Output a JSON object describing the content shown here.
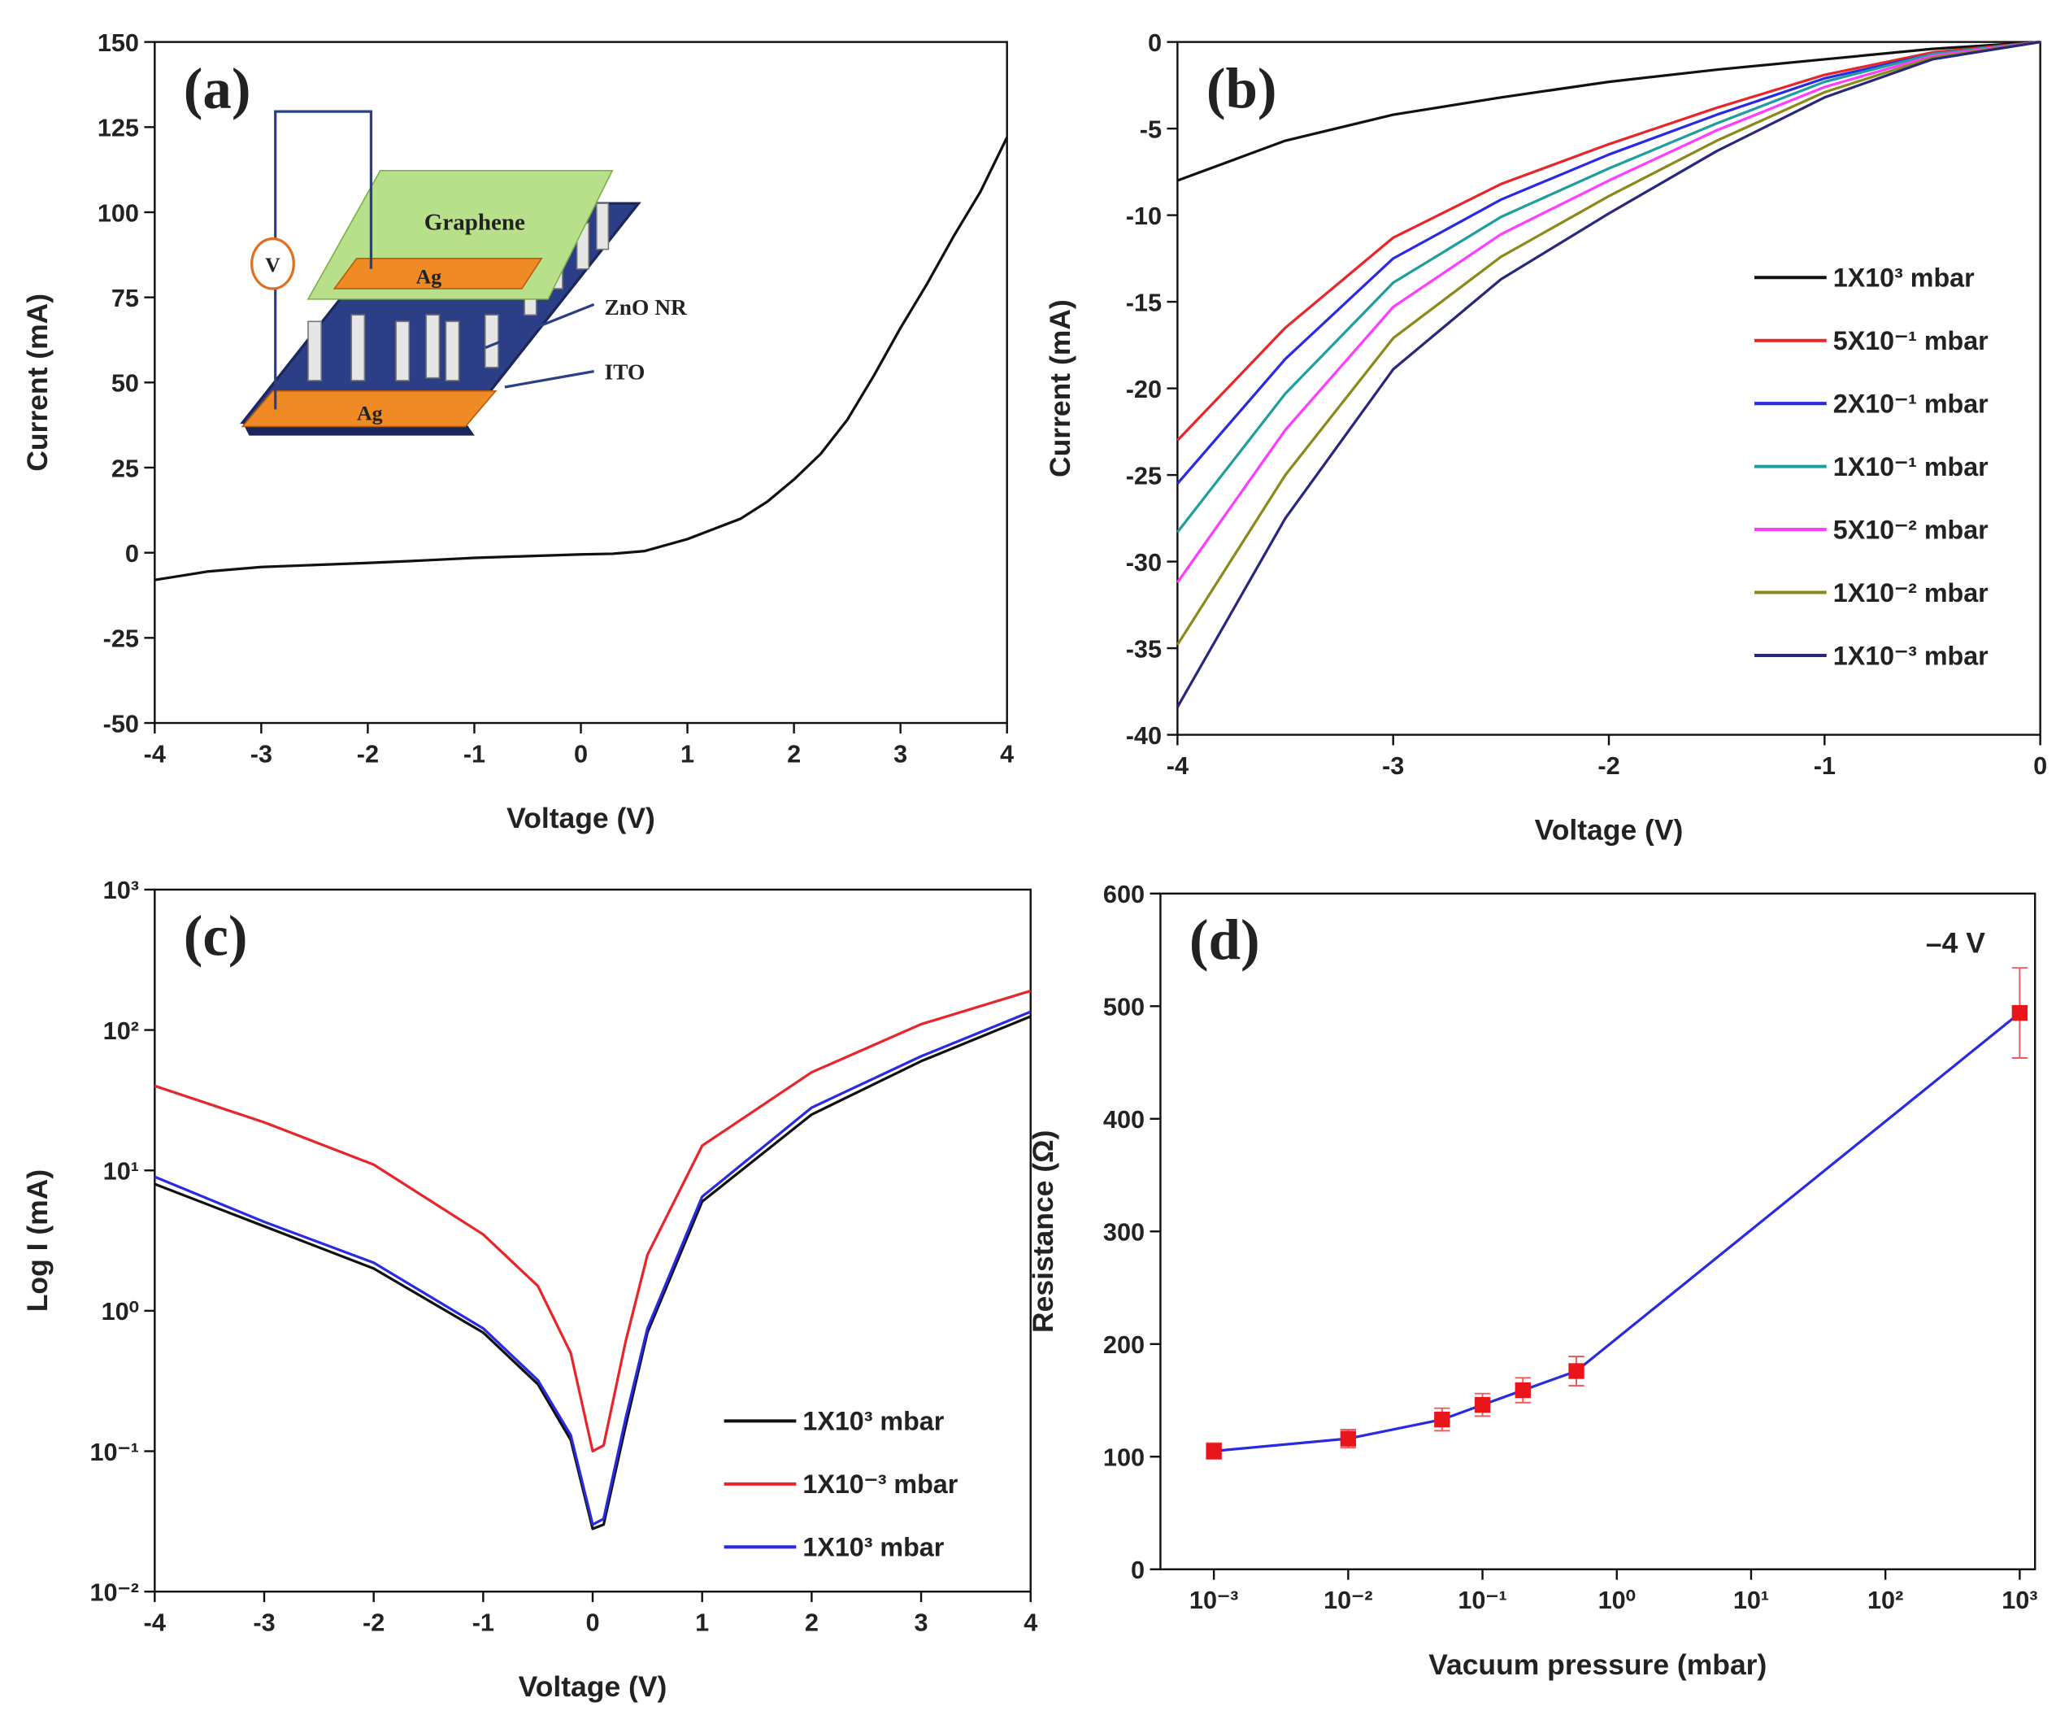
{
  "chart_data": [
    {
      "type": "line",
      "panel_label": "(a)",
      "x_label": "Voltage (V)",
      "y_label": "Current (mA)",
      "x": [
        -4,
        -3.5,
        -3,
        -2.5,
        -2,
        -1.5,
        -1,
        -0.5,
        0,
        0.3,
        0.6,
        1,
        1.25,
        1.5,
        1.75,
        2,
        2.25,
        2.5,
        2.75,
        3,
        3.25,
        3.5,
        3.75,
        4
      ],
      "series": [
        {
          "color": "#111111",
          "values": [
            -8,
            -5.5,
            -4.2,
            -3.6,
            -3,
            -2.3,
            -1.5,
            -1,
            -0.5,
            -0.3,
            0.5,
            4,
            7,
            10,
            15,
            21.5,
            29,
            39,
            52,
            66,
            79,
            93,
            106,
            122
          ]
        }
      ],
      "xlim": [
        -4,
        4
      ],
      "ylim": [
        -50,
        150
      ],
      "xticks": [
        -4,
        -3,
        -2,
        -1,
        0,
        1,
        2,
        3,
        4
      ],
      "yticks": [
        -50,
        -25,
        0,
        25,
        50,
        75,
        100,
        125,
        150
      ],
      "inset_labels": [
        "Graphene",
        "Ag",
        "V",
        "ZnO NR",
        "ITO",
        "Ag"
      ]
    },
    {
      "type": "line",
      "panel_label": "(b)",
      "x_label": "Voltage (V)",
      "y_label": "Current (mA)",
      "legend": "center right",
      "x": [
        -4,
        -3.5,
        -3,
        -2.5,
        -2,
        -1.5,
        -1,
        -0.5,
        0
      ],
      "series": [
        {
          "name": "1X10³ mbar",
          "color": "#111111",
          "values": [
            -8,
            -5.7,
            -4.2,
            -3.2,
            -2.3,
            -1.6,
            -1,
            -0.4,
            0
          ]
        },
        {
          "name": "5X10⁻¹ mbar",
          "color": "#e8262a",
          "values": [
            -23,
            -16.5,
            -11.3,
            -8.2,
            -5.9,
            -3.8,
            -1.9,
            -0.6,
            0
          ]
        },
        {
          "name": "2X10⁻¹ mbar",
          "color": "#2a2ae0",
          "values": [
            -25.5,
            -18.3,
            -12.5,
            -9.1,
            -6.5,
            -4.2,
            -2.1,
            -0.7,
            0
          ]
        },
        {
          "name": "1X10⁻¹ mbar",
          "color": "#1f9e9e",
          "values": [
            -28.3,
            -20.3,
            -13.9,
            -10.1,
            -7.3,
            -4.7,
            -2.3,
            -0.7,
            0
          ]
        },
        {
          "name": "5X10⁻² mbar",
          "color": "#ff3cff",
          "values": [
            -31.2,
            -22.4,
            -15.3,
            -11.1,
            -8,
            -5.1,
            -2.6,
            -0.8,
            0
          ]
        },
        {
          "name": "1X10⁻² mbar",
          "color": "#8a8a1a",
          "values": [
            -34.8,
            -25,
            -17.1,
            -12.4,
            -8.9,
            -5.7,
            -2.9,
            -0.9,
            0
          ]
        },
        {
          "name": "1X10⁻³ mbar",
          "color": "#28287a",
          "values": [
            -38.4,
            -27.5,
            -18.9,
            -13.7,
            -9.9,
            -6.3,
            -3.2,
            -1,
            0
          ]
        }
      ],
      "xlim": [
        -4,
        0
      ],
      "ylim": [
        -40,
        0
      ],
      "xticks": [
        -4,
        -3,
        -2,
        -1,
        0
      ],
      "yticks": [
        -40,
        -35,
        -30,
        -25,
        -20,
        -15,
        -10,
        -5,
        0
      ]
    },
    {
      "type": "line",
      "panel_label": "(c)",
      "x_label": "Voltage (V)",
      "y_label": "Log I (mA)",
      "legend": "lower right",
      "yscale": "log",
      "x": [
        -4,
        -3,
        -2,
        -1,
        -0.5,
        -0.2,
        0,
        0.1,
        0.3,
        0.5,
        1,
        2,
        3,
        4
      ],
      "series": [
        {
          "name": "1X10³ mbar",
          "color": "#111111",
          "values": [
            8,
            4,
            2,
            0.7,
            0.3,
            0.12,
            0.028,
            0.03,
            0.15,
            0.7,
            6,
            25,
            60,
            125
          ]
        },
        {
          "name": "1X10⁻³ mbar",
          "color": "#e8262a",
          "values": [
            40,
            22,
            11,
            3.5,
            1.5,
            0.5,
            0.1,
            0.11,
            0.6,
            2.5,
            15,
            50,
            110,
            190
          ]
        },
        {
          "name": "1X10³ mbar",
          "color": "#2a2ae0",
          "values": [
            9,
            4.3,
            2.2,
            0.75,
            0.32,
            0.13,
            0.03,
            0.033,
            0.17,
            0.75,
            6.5,
            28,
            65,
            135
          ]
        }
      ],
      "xlim": [
        -4,
        4
      ],
      "ylim": [
        0.01,
        1000
      ],
      "xticks": [
        -4,
        -3,
        -2,
        -1,
        0,
        1,
        2,
        3,
        4
      ],
      "yticks": [
        {
          "value": 0.01,
          "label": "10⁻²"
        },
        {
          "value": 0.1,
          "label": "10⁻¹"
        },
        {
          "value": 1,
          "label": "10⁰"
        },
        {
          "value": 10,
          "label": "10¹"
        },
        {
          "value": 100,
          "label": "10²"
        },
        {
          "value": 1000,
          "label": "10³"
        }
      ]
    },
    {
      "type": "line",
      "panel_label": "(d)",
      "x_label": "Vacuum pressure (mbar)",
      "y_label": "Resistance (Ω)",
      "annotation": "–4 V",
      "xscale": "log",
      "x": [
        0.001,
        0.01,
        0.05,
        0.1,
        0.2,
        0.5,
        1000
      ],
      "series": [
        {
          "color": "#2a2ae0",
          "marker_color": "#e8151b",
          "values": [
            105,
            116,
            133,
            146,
            159,
            176,
            494
          ],
          "errors": [
            7,
            8,
            10,
            10,
            11,
            13,
            40
          ]
        }
      ],
      "xlim": [
        0.0004,
        1300
      ],
      "ylim": [
        0,
        600
      ],
      "xticks": [
        {
          "value": 0.001,
          "label": "10⁻³"
        },
        {
          "value": 0.01,
          "label": "10⁻²"
        },
        {
          "value": 0.1,
          "label": "10⁻¹"
        },
        {
          "value": 1,
          "label": "10⁰"
        },
        {
          "value": 10,
          "label": "10¹"
        },
        {
          "value": 100,
          "label": "10²"
        },
        {
          "value": 1000,
          "label": "10³"
        }
      ],
      "yticks": [
        0,
        100,
        200,
        300,
        400,
        500,
        600
      ]
    }
  ]
}
